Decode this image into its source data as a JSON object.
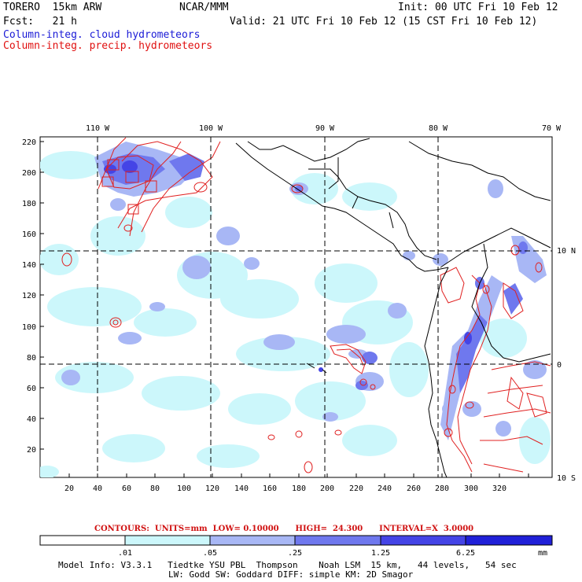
{
  "header": {
    "model": "TORERO  15km ARW",
    "org": "NCAR/MMM",
    "init": "Init: 00 UTC Fri 10 Feb 12",
    "fcst": "Fcst:   21 h",
    "valid": "Valid: 21 UTC Fri 10 Feb 12 (15 CST Fri 10 Feb 12)",
    "field1": "Column-integ. cloud hydrometeors",
    "field2": "Column-integ. precip. hydrometeors"
  },
  "map": {
    "lon_labels": [
      "110 W",
      "100 W",
      "90 W",
      "80 W",
      "70 W"
    ],
    "lat_labels": [
      "10 N",
      "0",
      "10 S"
    ],
    "y_ticks": [
      "220",
      "200",
      "180",
      "160",
      "140",
      "120",
      "100",
      "80",
      "60",
      "40",
      "20"
    ],
    "x_ticks": [
      "20",
      "40",
      "60",
      "80",
      "100",
      "120",
      "140",
      "160",
      "180",
      "200",
      "220",
      "240",
      "260",
      "280",
      "300",
      "320"
    ],
    "colors": {
      "shade1": "#ccf7fb",
      "shade2": "#a8b7f5",
      "shade3": "#6f78ee",
      "shade4": "#4444e6",
      "shade5": "#2020d8",
      "contour": "#e02020"
    }
  },
  "contours": {
    "text": "CONTOURS:  UNITS=mm  LOW= 0.10000      HIGH=  24.300      INTERVAL=X  3.0000"
  },
  "colorbar": {
    "labels": [
      ".01",
      ".05",
      ".25",
      "1.25",
      "6.25"
    ],
    "unit": "mm"
  },
  "footer": {
    "line1": "Model Info: V3.3.1   Tiedtke YSU PBL  Thompson    Noah LSM  15 km,   44 levels,   54 sec",
    "line2": "LW: Godd SW: Goddard DIFF: simple KM: 2D Smagor"
  }
}
